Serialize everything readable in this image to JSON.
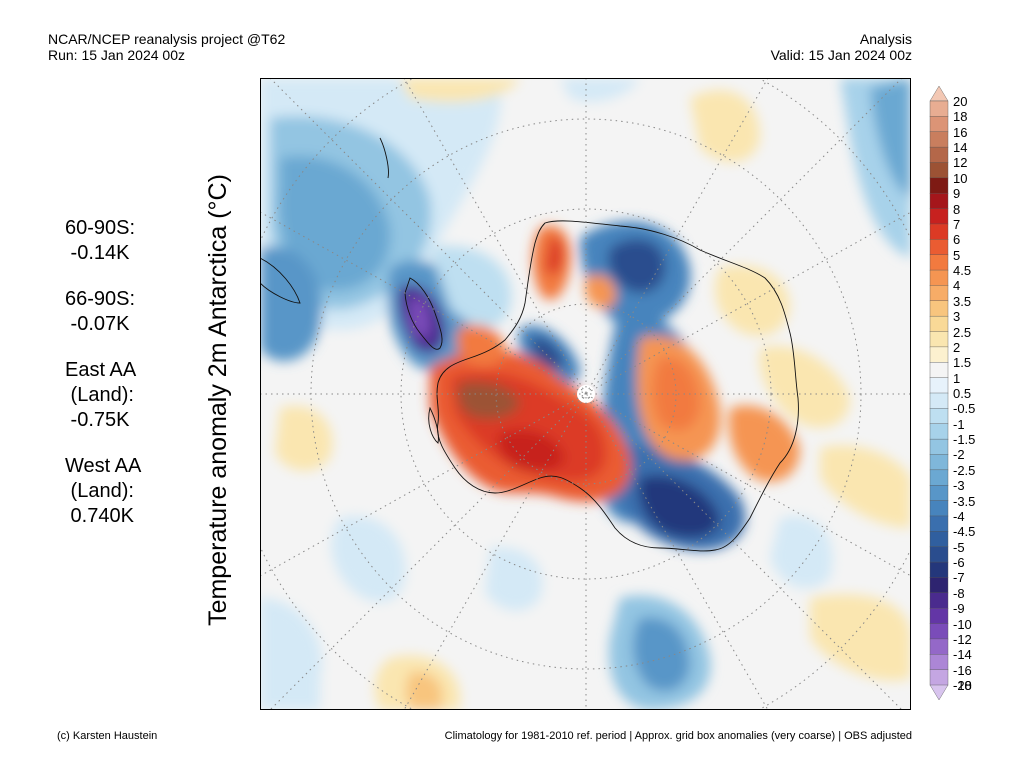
{
  "header": {
    "left_line1": "NCAR/NCEP reanalysis project @T62",
    "left_line2": "Run: 15 Jan 2024 00z",
    "right_line1": "Analysis",
    "right_line2": "Valid: 15 Jan 2024 00z"
  },
  "axis_label": "Temperature anomaly 2m Antarctica (°C)",
  "stats": [
    {
      "lines": [
        "60-90S:",
        " -0.14K"
      ]
    },
    {
      "lines": [
        "66-90S:",
        " -0.07K"
      ]
    },
    {
      "lines": [
        "East AA",
        " (Land):",
        " -0.75K"
      ]
    },
    {
      "lines": [
        "West AA",
        " (Land):",
        " 0.740K"
      ]
    }
  ],
  "footer": {
    "left": "(c) Karsten Haustein",
    "right": "Climatology for 1981-2010 ref. period | Approx. grid box anomalies (very coarse) | OBS adjusted"
  },
  "colorbar": {
    "labels": [
      "20",
      "18",
      "16",
      "14",
      "12",
      "10",
      "9",
      "8",
      "7",
      "6",
      "5",
      "4.5",
      "4",
      "3.5",
      "3",
      "2.5",
      "2",
      "1.5",
      "1",
      "0.5",
      "-0.5",
      "-1",
      "-1.5",
      "-2",
      "-2.5",
      "-3",
      "-3.5",
      "-4",
      "-4.5",
      "-5",
      "-6",
      "-7",
      "-8",
      "-9",
      "-10",
      "-12",
      "-14",
      "-16",
      "-18",
      "-20"
    ],
    "colors": [
      "#f3c8b4",
      "#e8ad92",
      "#dc9476",
      "#c97e5e",
      "#b46749",
      "#9c5234",
      "#7e1a14",
      "#a5161b",
      "#c7211f",
      "#dc3a25",
      "#ea5c32",
      "#f27a3f",
      "#f59552",
      "#f7ac67",
      "#f8c57e",
      "#f9d997",
      "#fae6b0",
      "#fcf1cf",
      "#f4f4f4",
      "#e7f2fb",
      "#d4e9f6",
      "#bedff1",
      "#a7d2ea",
      "#93c5e2",
      "#7fb7da",
      "#6ba8d2",
      "#5896c8",
      "#4784bd",
      "#3a6fae",
      "#305f9f",
      "#2a4d8e",
      "#24377b",
      "#2e2470",
      "#4a2b8e",
      "#6336a6",
      "#7a4cb9",
      "#9468c8",
      "#ac86d6",
      "#c4a6e2",
      "#d8c4ee"
    ]
  }
}
